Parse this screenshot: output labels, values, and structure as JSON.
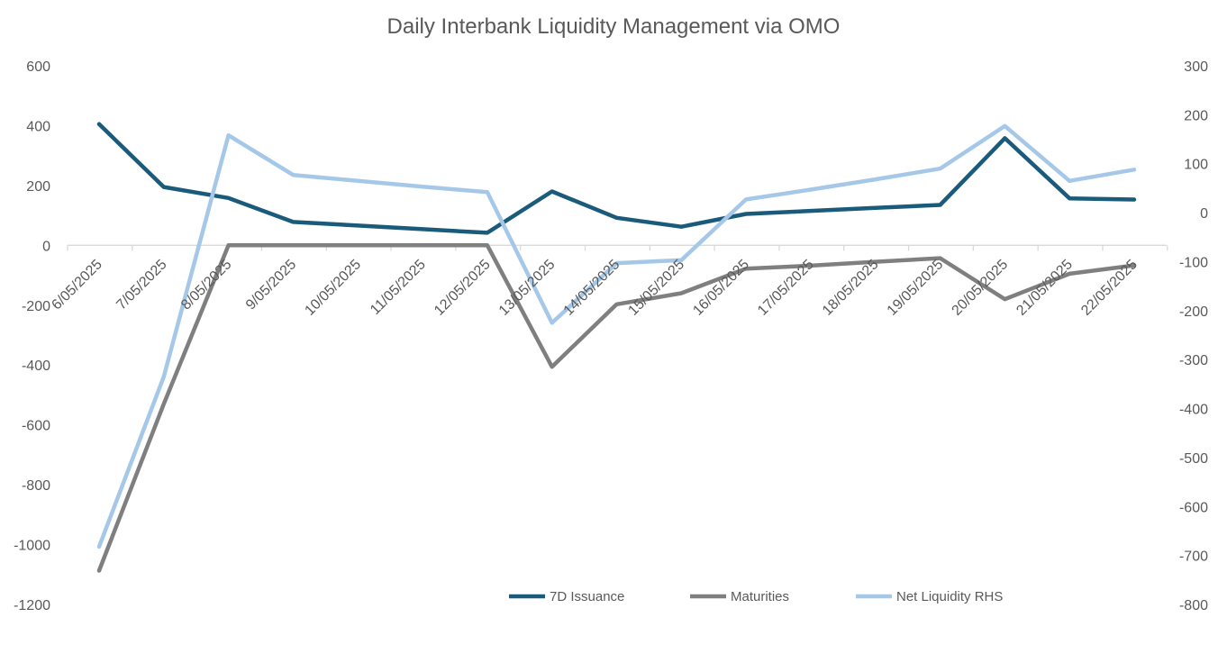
{
  "chart_data": {
    "type": "line",
    "title": "Daily Interbank Liquidity Management via OMO",
    "categories": [
      "6/05/2025",
      "7/05/2025",
      "8/05/2025",
      "9/05/2025",
      "10/05/2025",
      "11/05/2025",
      "12/05/2025",
      "13/05/2025",
      "14/05/2025",
      "15/05/2025",
      "16/05/2025",
      "17/05/2025",
      "18/05/2025",
      "19/05/2025",
      "20/05/2025",
      "21/05/2025",
      "22/05/2025"
    ],
    "y_left": {
      "min": -1200,
      "max": 600,
      "ticks": [
        600,
        400,
        200,
        0,
        -200,
        -400,
        -600,
        -800,
        -1000,
        -1200
      ]
    },
    "y_right": {
      "min": -800,
      "max": 300,
      "ticks": [
        300,
        200,
        100,
        0,
        -100,
        -200,
        -300,
        -400,
        -500,
        -600,
        -700,
        -800
      ]
    },
    "series": [
      {
        "name": "7D Issuance",
        "axis": "left",
        "color": "#1a5a7a",
        "values": [
          405,
          195,
          158,
          78,
          66,
          54,
          42,
          180,
          92,
          62,
          105,
          115,
          125,
          135,
          358,
          157,
          153
        ]
      },
      {
        "name": "Maturities",
        "axis": "left",
        "color": "#7f7f7f",
        "values": [
          -1087,
          -530,
          0,
          0,
          0,
          0,
          0,
          -406,
          -197,
          -160,
          -78,
          -68,
          -55,
          -43,
          -180,
          -95,
          -67
        ]
      },
      {
        "name": "Net Liquidity RHS",
        "axis": "right",
        "color": "#a6c8e8",
        "values": [
          -682,
          -335,
          158,
          77,
          65,
          53,
          42,
          -225,
          -103,
          -97,
          27,
          47,
          68,
          90,
          177,
          65,
          88
        ]
      }
    ],
    "legend": [
      "7D Issuance",
      "Maturities",
      "Net Liquidity RHS"
    ],
    "legend_position": "bottom-center"
  }
}
